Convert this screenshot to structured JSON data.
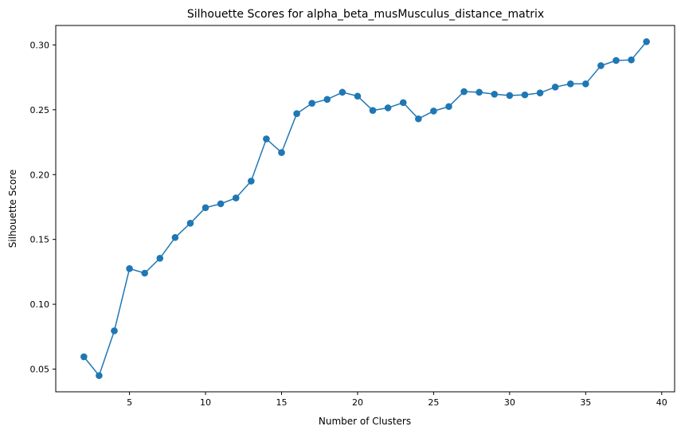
{
  "chart_data": {
    "type": "line",
    "title": "Silhouette Scores for alpha_beta_musMusculus_distance_matrix",
    "xlabel": "Number of Clusters",
    "ylabel": "Silhouette Score",
    "xlim": [
      0.15,
      40.85
    ],
    "ylim": [
      0.0325,
      0.315
    ],
    "xticks": [
      5,
      10,
      15,
      20,
      25,
      30,
      35,
      40
    ],
    "yticks": [
      0.05,
      0.1,
      0.15,
      0.2,
      0.25,
      0.3
    ],
    "ytick_labels": [
      "0.05",
      "0.10",
      "0.15",
      "0.20",
      "0.25",
      "0.30"
    ],
    "grid": false,
    "marker": "circle",
    "color": "#1f77b4",
    "x": [
      2,
      3,
      4,
      5,
      6,
      7,
      8,
      9,
      10,
      11,
      12,
      13,
      14,
      15,
      16,
      17,
      18,
      19,
      20,
      21,
      22,
      23,
      24,
      25,
      26,
      27,
      28,
      29,
      30,
      31,
      32,
      33,
      34,
      35,
      36,
      37,
      38,
      39
    ],
    "y": [
      0.0595,
      0.045,
      0.0795,
      0.1275,
      0.124,
      0.1355,
      0.1515,
      0.1625,
      0.1745,
      0.1775,
      0.182,
      0.195,
      0.2275,
      0.217,
      0.247,
      0.255,
      0.258,
      0.2635,
      0.2605,
      0.2495,
      0.2515,
      0.2555,
      0.243,
      0.249,
      0.2525,
      0.264,
      0.2635,
      0.262,
      0.261,
      0.2615,
      0.263,
      0.2675,
      0.27,
      0.27,
      0.284,
      0.288,
      0.2885,
      0.3025
    ]
  }
}
